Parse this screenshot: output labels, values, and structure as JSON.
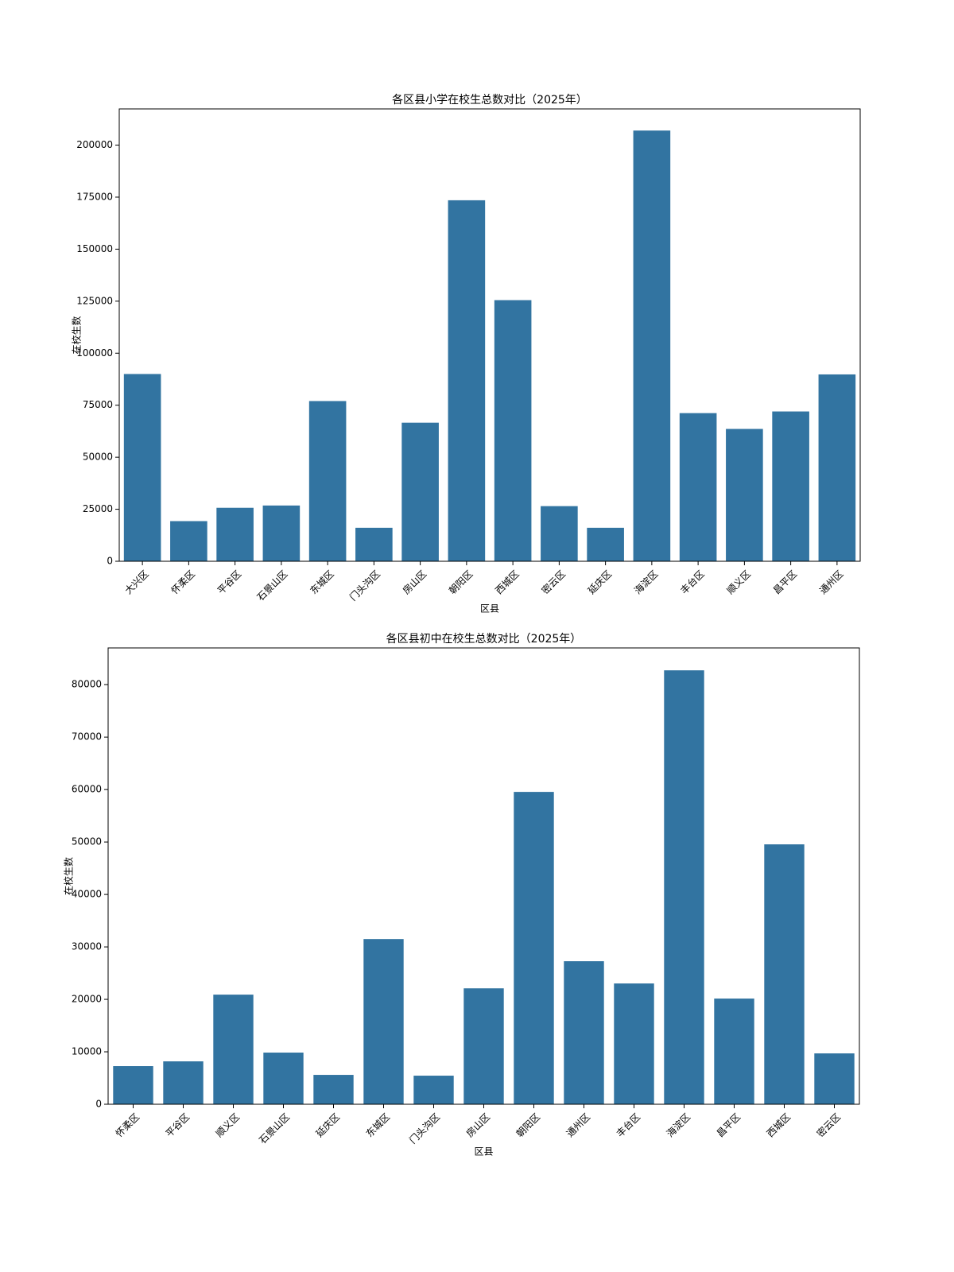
{
  "chart_data": [
    {
      "type": "bar",
      "title": "各区县小学在校生总数对比（2025年）",
      "xlabel": "区县",
      "ylabel": "在校生数",
      "categories": [
        "大兴区",
        "怀柔区",
        "平谷区",
        "石景山区",
        "东城区",
        "门头沟区",
        "房山区",
        "朝阳区",
        "西城区",
        "密云区",
        "延庆区",
        "海淀区",
        "丰台区",
        "顺义区",
        "昌平区",
        "通州区"
      ],
      "values": [
        90000,
        19300,
        25700,
        26800,
        77000,
        16100,
        66600,
        173500,
        125500,
        26500,
        16100,
        207000,
        71200,
        63600,
        72000,
        89800
      ],
      "color": "#3274a1",
      "ylim": [
        0,
        217400
      ],
      "yticks": [
        0,
        25000,
        50000,
        75000,
        100000,
        125000,
        150000,
        175000,
        200000
      ]
    },
    {
      "type": "bar",
      "title": "各区县初中在校生总数对比（2025年）",
      "xlabel": "区县",
      "ylabel": "在校生数",
      "categories": [
        "怀柔区",
        "平谷区",
        "顺义区",
        "石景山区",
        "延庆区",
        "东城区",
        "门头沟区",
        "房山区",
        "朝阳区",
        "通州区",
        "丰台区",
        "海淀区",
        "昌平区",
        "西城区",
        "密云区"
      ],
      "values": [
        7270,
        8180,
        20900,
        9850,
        5600,
        31500,
        5450,
        22100,
        59550,
        27270,
        23030,
        82730,
        20150,
        49550,
        9700
      ],
      "color": "#3274a1",
      "ylim": [
        0,
        87000
      ],
      "yticks": [
        0,
        10000,
        20000,
        30000,
        40000,
        50000,
        60000,
        70000,
        80000
      ]
    }
  ]
}
